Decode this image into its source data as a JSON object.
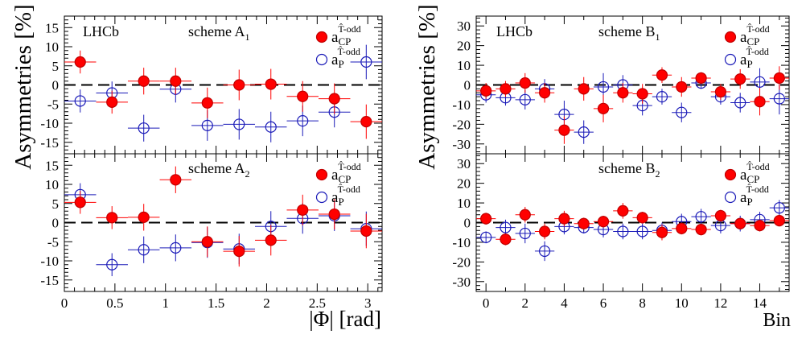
{
  "ylabel": "Asymmetries [%]",
  "colors": {
    "cp": "#ff0000",
    "p": "#1a1ab8",
    "cp_edge": "#c00000"
  },
  "left": {
    "experiment": "LHCb",
    "xlabel": "|Φ| [rad]",
    "xlim": [
      0,
      3.14159
    ],
    "xticks": [
      "0",
      "0.5",
      "1",
      "1.5",
      "2",
      "2.5",
      "3"
    ],
    "xtick_values": [
      0,
      0.5,
      1,
      1.5,
      2,
      2.5,
      3
    ]
  },
  "right": {
    "experiment": "LHCb",
    "xlabel": "Bin",
    "xlim": [
      -0.5,
      15.5
    ],
    "xticks": [
      "0",
      "2",
      "4",
      "6",
      "8",
      "10",
      "12",
      "14"
    ],
    "xtick_values": [
      0,
      2,
      4,
      6,
      8,
      10,
      12,
      14
    ]
  },
  "legend": {
    "cp_main": "a",
    "cp_sub": "CP",
    "cp_sup": "T̂-odd",
    "p_main": "a",
    "p_sub": "P",
    "p_sup": "T̂-odd"
  },
  "chart_data": [
    {
      "type": "scatter",
      "scheme": "scheme A",
      "scheme_sub": "1",
      "ylim": [
        -18,
        18
      ],
      "yticks": [
        -15,
        -10,
        -5,
        0,
        5,
        10,
        15
      ],
      "x": [
        0.157,
        0.471,
        0.785,
        1.1,
        1.414,
        1.728,
        2.042,
        2.356,
        2.67,
        2.985
      ],
      "xerr": 0.157,
      "series": [
        {
          "name": "a_CP^{T-odd}",
          "values": [
            6,
            -4.5,
            1,
            1,
            -4.7,
            0,
            0.2,
            -3,
            -3.6,
            -9.6
          ],
          "errors": [
            3,
            3,
            3.5,
            3.5,
            4,
            4,
            4,
            4,
            4,
            4.5
          ]
        },
        {
          "name": "a_P^{T-odd}",
          "values": [
            -4.2,
            -2.1,
            -11.3,
            -1.1,
            -10.6,
            -10.3,
            -11,
            -9.4,
            -7.1,
            6
          ],
          "errors": [
            3,
            3,
            3.5,
            3.5,
            4,
            4,
            4,
            4,
            4,
            4.5
          ]
        }
      ]
    },
    {
      "type": "scatter",
      "scheme": "scheme A",
      "scheme_sub": "2",
      "ylim": [
        -18,
        18
      ],
      "yticks": [
        -15,
        -10,
        -5,
        0,
        5,
        10,
        15
      ],
      "x": [
        0.157,
        0.471,
        0.785,
        1.1,
        1.414,
        1.728,
        2.042,
        2.356,
        2.67,
        2.985
      ],
      "xerr": 0.157,
      "series": [
        {
          "name": "a_CP^{T-odd}",
          "values": [
            5.3,
            1.3,
            1.4,
            11.2,
            -5,
            -7.5,
            -4.6,
            3.3,
            2.2,
            -2.2
          ],
          "errors": [
            3,
            3,
            3.5,
            3.5,
            4,
            4,
            4,
            4,
            4,
            4.5
          ]
        },
        {
          "name": "a_P^{T-odd}",
          "values": [
            7.3,
            -11,
            -7.1,
            -6.6,
            -5.2,
            -6.9,
            -1,
            1.1,
            1.8,
            -1.6
          ],
          "errors": [
            3,
            3,
            3.5,
            3.5,
            4,
            4,
            4,
            4,
            4,
            4.5
          ]
        }
      ]
    },
    {
      "type": "scatter",
      "scheme": "scheme B",
      "scheme_sub": "1",
      "ylim": [
        -35,
        35
      ],
      "yticks": [
        -30,
        -20,
        -10,
        0,
        10,
        20,
        30
      ],
      "x": [
        0,
        1,
        2,
        3,
        4,
        5,
        6,
        7,
        8,
        9,
        10,
        11,
        12,
        13,
        14,
        15
      ],
      "xerr": 0.5,
      "series": [
        {
          "name": "a_CP^{T-odd}",
          "values": [
            -3,
            -2,
            1,
            -4,
            -23,
            -2,
            -12,
            -4,
            -4.5,
            5,
            -1,
            3.5,
            -3.5,
            3,
            -8.5,
            3.5
          ],
          "errors": [
            4,
            4,
            5,
            5,
            7,
            6,
            7,
            5,
            5,
            4,
            5,
            3,
            4,
            5,
            7,
            6
          ]
        },
        {
          "name": "a_P^{T-odd}",
          "values": [
            -5,
            -6.5,
            -7.5,
            -2,
            -15,
            -24,
            -1,
            0,
            -10.5,
            -6,
            -14,
            1,
            -6,
            -9,
            1.5,
            -7
          ],
          "errors": [
            4,
            4,
            5,
            5,
            7,
            6,
            7,
            5,
            5,
            4,
            5,
            3,
            4,
            5,
            7,
            8
          ]
        }
      ]
    },
    {
      "type": "scatter",
      "scheme": "scheme B",
      "scheme_sub": "2",
      "ylim": [
        -35,
        35
      ],
      "yticks": [
        -30,
        -20,
        -10,
        0,
        10,
        20,
        30
      ],
      "x": [
        0,
        1,
        2,
        3,
        4,
        5,
        6,
        7,
        8,
        9,
        10,
        11,
        12,
        13,
        14,
        15
      ],
      "xerr": 0.5,
      "series": [
        {
          "name": "a_CP^{T-odd}",
          "values": [
            2,
            -8.5,
            4,
            -4.5,
            2,
            -0.5,
            0.5,
            6,
            2.5,
            -5,
            -3,
            -3.5,
            3.5,
            -0.5,
            -1.5,
            1
          ],
          "errors": [
            3,
            3,
            4,
            4,
            4,
            3,
            3,
            4,
            3,
            4,
            3,
            3,
            3,
            3,
            3,
            3
          ]
        },
        {
          "name": "a_P^{T-odd}",
          "values": [
            -7.5,
            -2.5,
            -5.5,
            -14.5,
            -2,
            -2.5,
            -3.5,
            -4.5,
            -4.5,
            -4,
            0.5,
            3,
            -1.5,
            -0.5,
            1.5,
            7.5
          ],
          "errors": [
            3,
            4,
            5,
            5,
            4,
            3,
            4,
            4,
            4,
            4,
            4,
            4,
            4,
            4,
            4,
            4
          ]
        }
      ]
    }
  ]
}
